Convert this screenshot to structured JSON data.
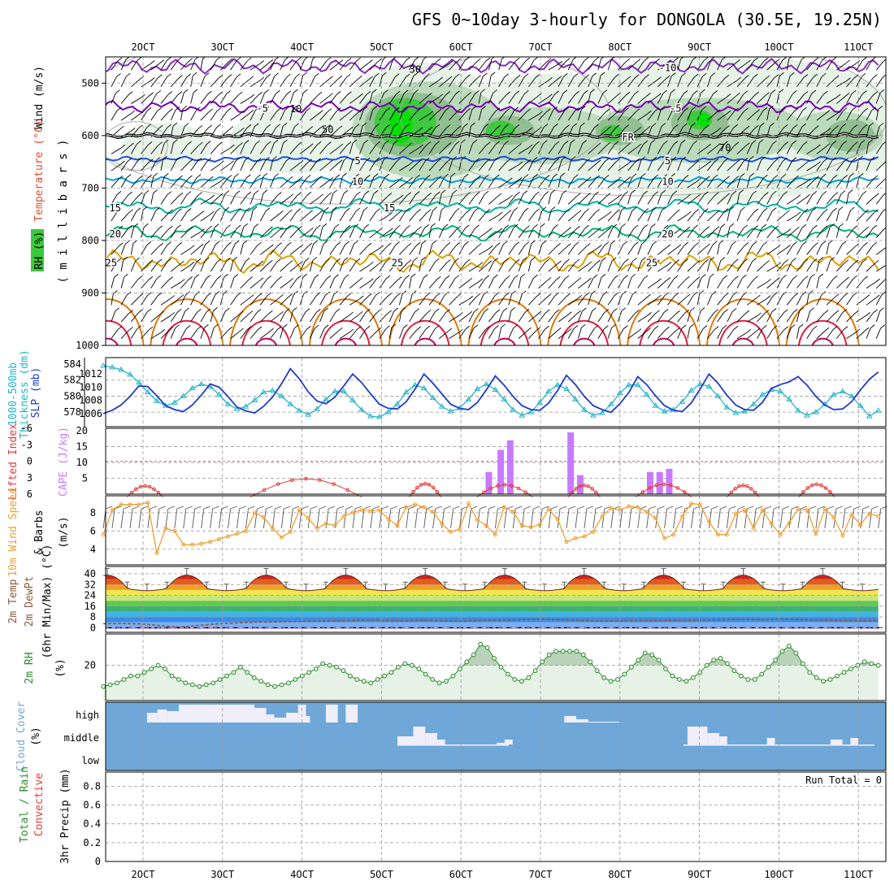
{
  "title": "GFS 0~10day 3-hourly for DONGOLA (30.5E, 19.25N)",
  "x_ticks": [
    "2OCT",
    "3OCT",
    "4OCT",
    "5OCT",
    "6OCT",
    "7OCT",
    "8OCT",
    "9OCT",
    "10OCT",
    "11OCT"
  ],
  "run_total_label": "Run Total = 0",
  "colors": {
    "rh_light": "#e6f2e6",
    "rh_mid": "#b9d8b9",
    "rh_dark": "#8fbe8f",
    "rh_green": "#3cc83c",
    "rh_bright": "#00e000",
    "t_minus10": "#8a2bc2",
    "t_minus5": "#7a00b8",
    "t_5": "#1e50dc",
    "t_10": "#00a0e0",
    "t_15": "#00b4a0",
    "t_20": "#00b478",
    "t_25": "#e0a000",
    "t_30": "#e07800",
    "t_35": "#e02040",
    "slp": "#1e3cc8",
    "thick": "#28b4c8",
    "cape": "#c87aff",
    "li": "#e03c3c",
    "wind10": "#f0a030",
    "cloud": "#6fa8d8",
    "cloud_fill": "#f0eef8"
  },
  "chart_data": [
    {
      "id": "upper_air",
      "type": "contour-section",
      "ylabel_parts": [
        "Wind (m/s)",
        "Temperature (°C)",
        "RH (%)"
      ],
      "ylabel2": "( m i l l i b a r s )",
      "y_axis": {
        "ticks": [
          500,
          600,
          700,
          800,
          900,
          1000
        ],
        "range": [
          450,
          1000
        ]
      },
      "isotherms": [
        {
          "value": -10,
          "labels": [
            "-10"
          ],
          "mean_p": 468
        },
        {
          "value": -5,
          "labels": [
            "-5",
            "-5"
          ],
          "mean_p": 545
        },
        {
          "value": 0,
          "labels": [
            "FR"
          ],
          "mean_p": 600
        },
        {
          "value": 5,
          "labels": [
            "5",
            "5"
          ],
          "mean_p": 645
        },
        {
          "value": 10,
          "labels": [
            "10",
            "10"
          ],
          "mean_p": 685
        },
        {
          "value": 15,
          "labels": [
            "15",
            "15"
          ],
          "mean_p": 735
        },
        {
          "value": 20,
          "labels": [
            "20",
            "20"
          ],
          "mean_p": 785
        },
        {
          "value": 25,
          "labels": [
            "25",
            "25",
            "25"
          ],
          "mean_p": 840
        }
      ],
      "rh_labels": [
        "10",
        "30",
        "50",
        "70"
      ]
    },
    {
      "id": "slp_thickness",
      "type": "line",
      "ylabel_left": [
        "1000-500mb",
        "Thickness (dm)"
      ],
      "ylabel_right": "SLP (mb)",
      "thickness_ticks": [
        578,
        580,
        582,
        584
      ],
      "slp_ticks": [
        1006,
        1008,
        1010,
        1012
      ],
      "series": [
        {
          "name": "SLP",
          "values": [
            1006.0,
            1006.5,
            1007.3,
            1008.6,
            1010.2,
            1010.1,
            1008.7,
            1007.2,
            1006.6,
            1006.3,
            1007.3,
            1008.8,
            1010.5,
            1010.0,
            1008.6,
            1007.0,
            1006.4,
            1006.1,
            1007.1,
            1008.5,
            1010.5,
            1012.8,
            1011.3,
            1009.3,
            1007.9,
            1007.5,
            1008.5,
            1010.2,
            1012.0,
            1010.7,
            1009.0,
            1007.4,
            1006.8,
            1006.7,
            1007.8,
            1009.7,
            1012.0,
            1010.6,
            1009.0,
            1007.4,
            1006.8,
            1006.6,
            1007.7,
            1009.6,
            1011.7,
            1010.3,
            1008.6,
            1007.2,
            1006.6,
            1006.5,
            1007.6,
            1009.5,
            1011.8,
            1010.4,
            1008.6,
            1007.2,
            1006.6,
            1006.2,
            1007.5,
            1009.2,
            1011.6,
            1010.4,
            1008.7,
            1007.2,
            1006.5,
            1006.3,
            1007.6,
            1009.7,
            1012.0,
            1010.6,
            1008.8,
            1007.3,
            1006.6,
            1006.5,
            1007.7,
            1009.8,
            1010.4,
            1010.8,
            1011.6,
            1010.3,
            1008.6,
            1007.3,
            1006.6,
            1006.7,
            1007.8,
            1009.6,
            1011.2,
            1012.3
          ]
        },
        {
          "name": "1000-500mb Thickness",
          "values": [
            583.8,
            583.6,
            583.3,
            582.7,
            581.7,
            580.5,
            579.4,
            578.8,
            579.2,
            580.0,
            581.0,
            581.5,
            581.2,
            580.2,
            579.0,
            578.4,
            578.7,
            579.5,
            580.5,
            580.7,
            580.0,
            579.0,
            578.2,
            577.7,
            578.4,
            579.6,
            580.6,
            580.6,
            579.5,
            578.3,
            577.5,
            577.4,
            578.0,
            579.0,
            580.5,
            581.4,
            581.0,
            579.8,
            578.7,
            578.1,
            578.5,
            579.6,
            580.9,
            581.5,
            580.8,
            579.6,
            578.3,
            577.6,
            578.0,
            579.2,
            580.6,
            581.4,
            580.9,
            579.6,
            578.3,
            577.6,
            577.9,
            579.0,
            580.4,
            581.4,
            581.4,
            580.2,
            578.8,
            578.1,
            578.3,
            579.3,
            580.7,
            581.5,
            581.2,
            580.0,
            578.6,
            577.9,
            578.1,
            579.0,
            580.2,
            580.8,
            580.6,
            579.6,
            578.2,
            577.6,
            578.0,
            579.0,
            580.2,
            580.6,
            580.0,
            578.8,
            577.5,
            578.2
          ]
        }
      ]
    },
    {
      "id": "cape_li",
      "type": "bar+line",
      "ylabel_left": "Lifted Index",
      "ylabel_right": "CAPE (J/kg)",
      "li_ticks": [
        "-6",
        "-3",
        "0",
        "3",
        "6"
      ],
      "cape_ticks": [
        "20",
        "15",
        "10",
        "5"
      ],
      "cape_bars": [
        {
          "day": 6.35,
          "value": 7
        },
        {
          "day": 6.5,
          "value": 14
        },
        {
          "day": 6.62,
          "value": 17
        },
        {
          "day": 7.38,
          "value": 19.5
        },
        {
          "day": 7.5,
          "value": 6
        },
        {
          "day": 8.38,
          "value": 7
        },
        {
          "day": 8.5,
          "value": 7
        },
        {
          "day": 8.62,
          "value": 8
        }
      ],
      "li_humps": [
        {
          "start": 1.8,
          "end": 2.25,
          "peak": 4.5
        },
        {
          "start": 3.35,
          "end": 4.75,
          "peak": 3.2
        },
        {
          "start": 5.35,
          "end": 5.75,
          "peak": 4.1
        },
        {
          "start": 6.2,
          "end": 6.9,
          "peak": 4.3
        },
        {
          "start": 7.35,
          "end": 7.75,
          "peak": 4.4
        },
        {
          "start": 8.2,
          "end": 8.9,
          "peak": 4.2
        },
        {
          "start": 9.35,
          "end": 9.75,
          "peak": 4.4
        },
        {
          "start": 10.25,
          "end": 10.7,
          "peak": 4.2
        }
      ]
    },
    {
      "id": "wind10m",
      "type": "line",
      "ylabel": [
        "10m Wind Speed",
        "& Barbs",
        "(m/s)"
      ],
      "y_ticks": [
        4,
        6,
        8
      ],
      "values": [
        5.6,
        8.3,
        8.9,
        8.9,
        8.9,
        9.1,
        3.6,
        6.3,
        6.0,
        4.5,
        4.5,
        4.6,
        4.8,
        5.1,
        5.4,
        5.7,
        6.0,
        8.0,
        7.5,
        6.3,
        5.3,
        5.9,
        8.3,
        7.4,
        6.3,
        6.8,
        6.6,
        7.6,
        8.0,
        8.3,
        8.2,
        8.3,
        7.3,
        6.6,
        8.6,
        8.9,
        8.6,
        8.1,
        6.8,
        5.9,
        6.2,
        9.0,
        7.2,
        6.6,
        5.6,
        8.6,
        8.1,
        6.6,
        6.4,
        6.7,
        8.4,
        7.3,
        4.8,
        5.2,
        5.4,
        5.9,
        7.6,
        8.5,
        8.3,
        8.7,
        8.6,
        8.1,
        7.4,
        5.2,
        5.6,
        7.6,
        9.0,
        8.9,
        7.0,
        5.6,
        5.6,
        7.9,
        8.3,
        6.3,
        8.3,
        6.8,
        5.6,
        6.9,
        8.4,
        8.3,
        5.7,
        8.4,
        7.5,
        5.5,
        7.8,
        6.7,
        7.9,
        7.6
      ]
    },
    {
      "id": "temp2m",
      "type": "area",
      "ylabel": [
        "2m Temp",
        "2m DewPt",
        "(6hr Min/Max) (°C)"
      ],
      "y_ticks": [
        0,
        8,
        16,
        24,
        32,
        40
      ],
      "temp_peaks": [
        {
          "day": 2.55,
          "max": 39
        },
        {
          "day": 3.55,
          "max": 38
        },
        {
          "day": 4.55,
          "max": 39
        },
        {
          "day": 5.55,
          "max": 39
        },
        {
          "day": 6.55,
          "max": 39
        },
        {
          "day": 7.55,
          "max": 39
        },
        {
          "day": 8.55,
          "max": 39
        },
        {
          "day": 9.55,
          "max": 39
        },
        {
          "day": 10.55,
          "max": 39
        }
      ],
      "temp_min": 29,
      "dewpoint_values": [
        3.0,
        3.1,
        2.8,
        1.6,
        0.4,
        1.7,
        2.8,
        3.5,
        4.2,
        4.3,
        4.5,
        4.8,
        5.0,
        5.3,
        5.7,
        5.3,
        5.1,
        5.7,
        5.0,
        4.8,
        5.6,
        5.6,
        6.0,
        6.3,
        6.0,
        5.7,
        5.0,
        5.0,
        5.3,
        5.3,
        5.5,
        5.4,
        5.8,
        6.0,
        6.2,
        5.9,
        6.3,
        6.0,
        5.6,
        5.4,
        5.2,
        5.1
      ]
    },
    {
      "id": "rh2m",
      "type": "line",
      "ylabel": [
        "2m RH",
        "(%)"
      ],
      "y_ticks": [
        20
      ],
      "values": [
        8,
        9,
        10,
        12,
        14,
        14,
        16,
        18,
        20,
        18,
        14,
        12,
        10,
        9,
        8,
        9,
        10,
        12,
        14,
        16,
        19,
        16,
        13,
        11,
        9,
        8,
        9,
        10,
        12,
        14,
        16,
        18,
        21,
        20,
        19,
        17,
        14,
        12,
        11,
        10,
        12,
        14,
        16,
        19,
        21,
        20,
        18,
        15,
        12,
        10,
        11,
        14,
        18,
        22,
        26,
        32,
        30,
        24,
        19,
        15,
        12,
        11,
        13,
        17,
        22,
        26,
        28,
        28,
        28,
        28,
        26,
        22,
        17,
        13,
        11,
        12,
        15,
        19,
        23,
        27,
        26,
        23,
        18,
        14,
        12,
        11,
        13,
        16,
        20,
        23,
        24,
        21,
        17,
        14,
        12,
        12,
        15,
        19,
        23,
        28,
        31,
        27,
        21,
        16,
        13,
        11,
        12,
        14,
        16,
        18,
        20,
        22,
        21,
        20
      ]
    },
    {
      "id": "cloud_cover",
      "type": "bar",
      "ylabel": [
        "Cloud Cover",
        "(%)"
      ],
      "levels": [
        "high",
        "middle",
        "low"
      ]
    },
    {
      "id": "precip",
      "type": "bar",
      "ylabel": [
        "Total / Rain",
        "Convective",
        "3hr Precip (mm)"
      ],
      "y_ticks": [
        "0",
        "0.2",
        "0.4",
        "0.6",
        "0.8"
      ],
      "values": []
    }
  ]
}
